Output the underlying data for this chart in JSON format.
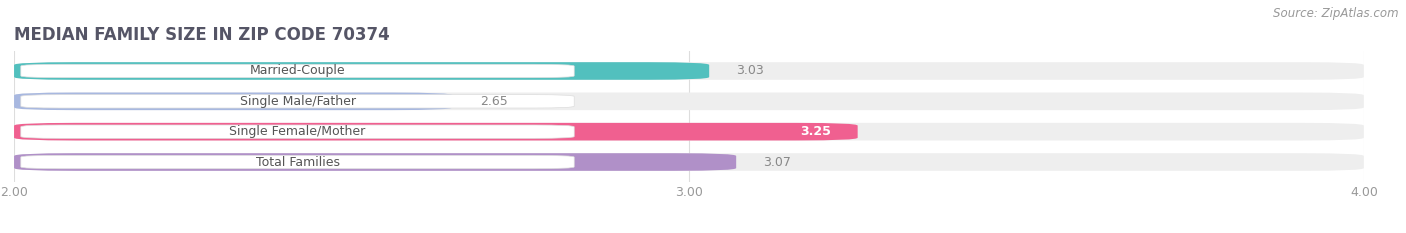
{
  "title": "MEDIAN FAMILY SIZE IN ZIP CODE 70374",
  "source": "Source: ZipAtlas.com",
  "categories": [
    "Married-Couple",
    "Single Male/Father",
    "Single Female/Mother",
    "Total Families"
  ],
  "values": [
    3.03,
    2.65,
    3.25,
    3.07
  ],
  "colors": [
    "#52c0be",
    "#a8b8e0",
    "#f06090",
    "#b090c8"
  ],
  "value_in_bar": [
    false,
    false,
    true,
    false
  ],
  "xlim": [
    2.0,
    4.0
  ],
  "xticks": [
    2.0,
    3.0,
    4.0
  ],
  "bar_height": 0.58,
  "background_color": "#ffffff",
  "bar_bg_color": "#eeeeee",
  "title_fontsize": 12,
  "label_fontsize": 9,
  "value_fontsize": 9,
  "source_fontsize": 8.5,
  "title_color": "#555566",
  "label_color": "#555555",
  "tick_color": "#999999",
  "grid_color": "#dddddd",
  "value_color_outside": "#888888",
  "value_color_inside": "#ffffff"
}
